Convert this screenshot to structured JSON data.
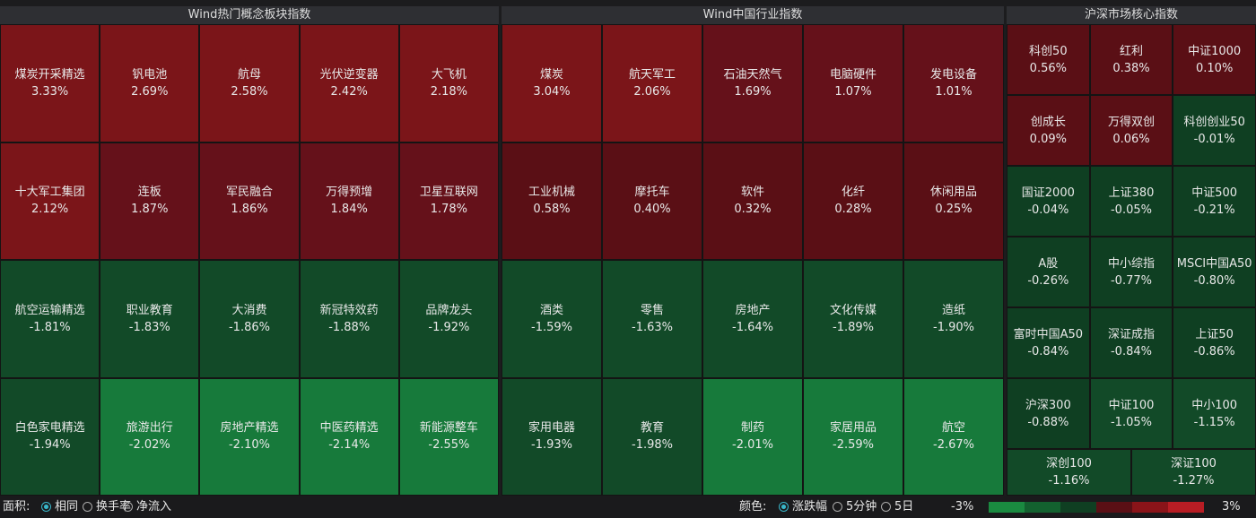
{
  "panels": [
    {
      "title": "Wind热门概念板块指数",
      "cells": [
        {
          "name": "煤炭开采精选",
          "change": "3.33%"
        },
        {
          "name": "钒电池",
          "change": "2.69%"
        },
        {
          "name": "航母",
          "change": "2.58%"
        },
        {
          "name": "光伏逆变器",
          "change": "2.42%"
        },
        {
          "name": "大飞机",
          "change": "2.18%"
        },
        {
          "name": "十大军工集团",
          "change": "2.12%"
        },
        {
          "name": "连板",
          "change": "1.87%"
        },
        {
          "name": "军民融合",
          "change": "1.86%"
        },
        {
          "name": "万得预增",
          "change": "1.84%"
        },
        {
          "name": "卫星互联网",
          "change": "1.78%"
        },
        {
          "name": "航空运输精选",
          "change": "-1.81%"
        },
        {
          "name": "职业教育",
          "change": "-1.83%"
        },
        {
          "name": "大消费",
          "change": "-1.86%"
        },
        {
          "name": "新冠特效药",
          "change": "-1.88%"
        },
        {
          "name": "品牌龙头",
          "change": "-1.92%"
        },
        {
          "name": "白色家电精选",
          "change": "-1.94%"
        },
        {
          "name": "旅游出行",
          "change": "-2.02%"
        },
        {
          "name": "房地产精选",
          "change": "-2.10%"
        },
        {
          "name": "中医药精选",
          "change": "-2.14%"
        },
        {
          "name": "新能源整车",
          "change": "-2.55%"
        }
      ]
    },
    {
      "title": "Wind中国行业指数",
      "cells": [
        {
          "name": "煤炭",
          "change": "3.04%"
        },
        {
          "name": "航天军工",
          "change": "2.06%"
        },
        {
          "name": "石油天然气",
          "change": "1.69%"
        },
        {
          "name": "电脑硬件",
          "change": "1.07%"
        },
        {
          "name": "发电设备",
          "change": "1.01%"
        },
        {
          "name": "工业机械",
          "change": "0.58%"
        },
        {
          "name": "摩托车",
          "change": "0.40%"
        },
        {
          "name": "软件",
          "change": "0.32%"
        },
        {
          "name": "化纤",
          "change": "0.28%"
        },
        {
          "name": "休闲用品",
          "change": "0.25%"
        },
        {
          "name": "酒类",
          "change": "-1.59%"
        },
        {
          "name": "零售",
          "change": "-1.63%"
        },
        {
          "name": "房地产",
          "change": "-1.64%"
        },
        {
          "name": "文化传媒",
          "change": "-1.89%"
        },
        {
          "name": "造纸",
          "change": "-1.90%"
        },
        {
          "name": "家用电器",
          "change": "-1.93%"
        },
        {
          "name": "教育",
          "change": "-1.98%"
        },
        {
          "name": "制药",
          "change": "-2.01%"
        },
        {
          "name": "家居用品",
          "change": "-2.59%"
        },
        {
          "name": "航空",
          "change": "-2.67%"
        }
      ]
    },
    {
      "title": "沪深市场核心指数",
      "cells": [
        {
          "name": "科创50",
          "change": "0.56%"
        },
        {
          "name": "红利",
          "change": "0.38%"
        },
        {
          "name": "中证1000",
          "change": "0.10%"
        },
        {
          "name": "创成长",
          "change": "0.09%"
        },
        {
          "name": "万得双创",
          "change": "0.06%"
        },
        {
          "name": "科创创业50",
          "change": "-0.01%"
        },
        {
          "name": "国证2000",
          "change": "-0.04%"
        },
        {
          "name": "上证380",
          "change": "-0.05%"
        },
        {
          "name": "中证500",
          "change": "-0.21%"
        },
        {
          "name": "A股",
          "change": "-0.26%"
        },
        {
          "name": "中小综指",
          "change": "-0.77%"
        },
        {
          "name": "MSCI中国A50",
          "change": "-0.80%"
        },
        {
          "name": "富时中国A50",
          "change": "-0.84%"
        },
        {
          "name": "深证成指",
          "change": "-0.84%"
        },
        {
          "name": "上证50",
          "change": "-0.86%"
        },
        {
          "name": "沪深300",
          "change": "-0.88%"
        },
        {
          "name": "中证100",
          "change": "-1.05%"
        },
        {
          "name": "中小100",
          "change": "-1.15%"
        },
        {
          "name": "深创100",
          "change": "-1.16%"
        },
        {
          "name": "深证100",
          "change": "-1.27%"
        }
      ]
    }
  ],
  "footer": {
    "area_label": "面积:",
    "area_options": [
      "相同",
      "换手率",
      "净流入"
    ],
    "color_label": "颜色:",
    "color_options": [
      "涨跌幅",
      "5分钟",
      "5日"
    ],
    "scale_min": "-3%",
    "scale_max": "3%"
  }
}
